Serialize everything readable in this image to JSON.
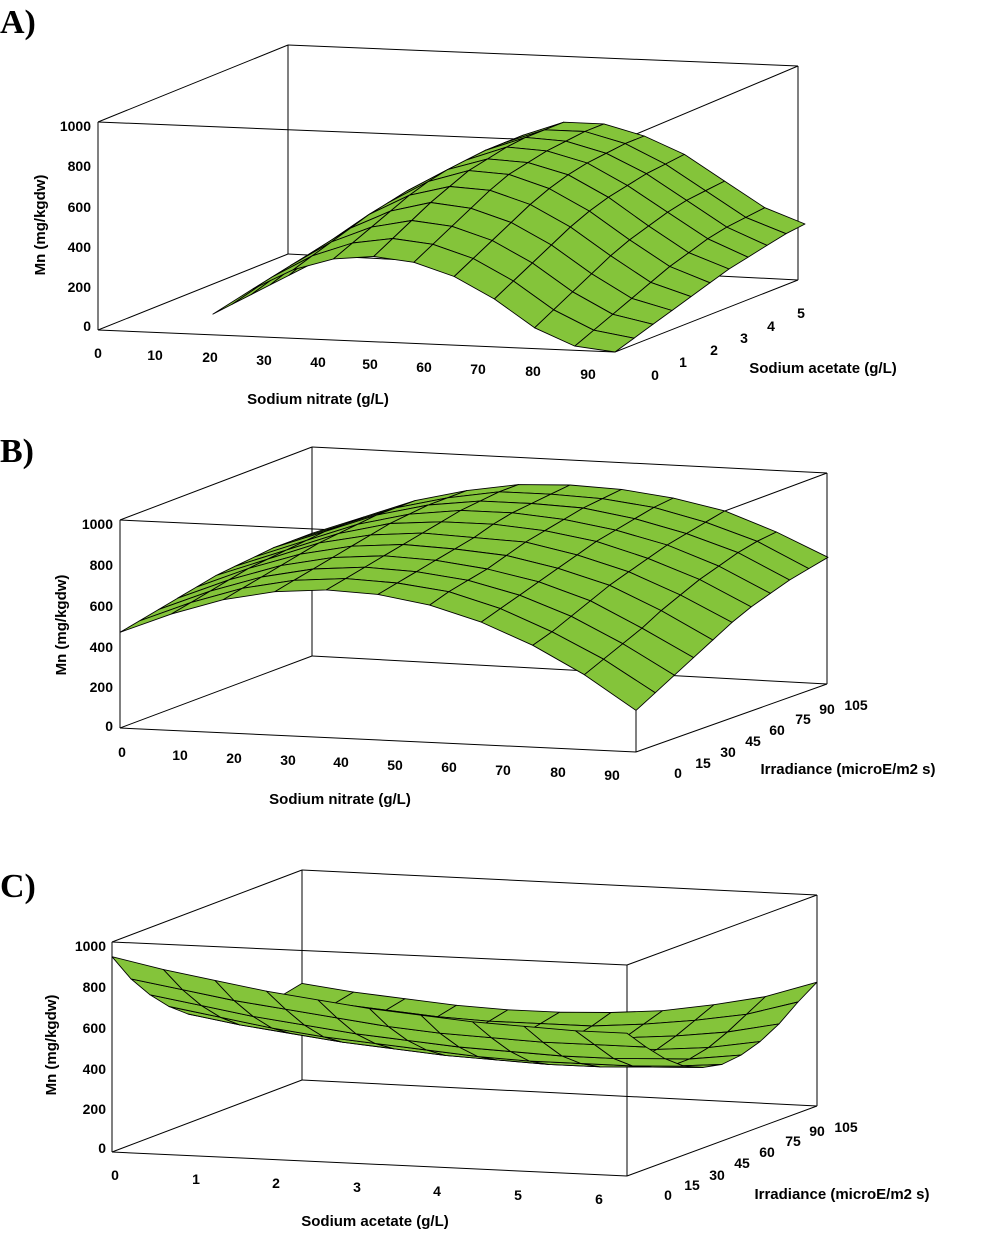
{
  "chart_data": [
    {
      "type": "surface3d",
      "panel": "A)",
      "xlabel": "Sodium nitrate (g/L)",
      "ylabel": "Sodium acetate (g/L)",
      "zlabel": "Mn (mg/kgdw)",
      "x_ticks": [
        "0",
        "10",
        "20",
        "30",
        "40",
        "50",
        "60",
        "70",
        "80",
        "90"
      ],
      "y_ticks": [
        "0",
        "1",
        "2",
        "3",
        "4",
        "5"
      ],
      "z_ticks": [
        "0",
        "200",
        "400",
        "600",
        "800",
        "1000"
      ],
      "xlim": [
        0,
        90
      ],
      "ylim": [
        0,
        5
      ],
      "zlim": [
        0,
        1000
      ],
      "surface": {
        "x": [
          20,
          27,
          34,
          41,
          48,
          55,
          62,
          69,
          76,
          83,
          90
        ],
        "y": [
          0,
          0.5,
          1,
          1.5,
          2,
          2.5,
          3,
          3.5,
          4,
          4.5,
          5
        ],
        "z": [
          [
            100,
            230,
            330,
            390,
            410,
            390,
            330,
            230,
            100,
            20,
            0
          ],
          [
            110,
            250,
            360,
            430,
            460,
            440,
            380,
            280,
            150,
            60,
            30
          ],
          [
            120,
            270,
            390,
            470,
            510,
            490,
            430,
            330,
            200,
            100,
            60
          ],
          [
            130,
            290,
            420,
            510,
            560,
            540,
            480,
            380,
            250,
            140,
            90
          ],
          [
            140,
            310,
            450,
            550,
            600,
            590,
            530,
            430,
            300,
            180,
            120
          ],
          [
            150,
            320,
            470,
            580,
            640,
            630,
            570,
            470,
            340,
            220,
            150
          ],
          [
            160,
            330,
            490,
            600,
            660,
            650,
            600,
            500,
            370,
            250,
            180
          ],
          [
            160,
            340,
            500,
            610,
            680,
            670,
            620,
            520,
            400,
            280,
            200
          ],
          [
            160,
            340,
            500,
            620,
            690,
            680,
            630,
            540,
            420,
            300,
            220
          ],
          [
            160,
            340,
            500,
            620,
            690,
            690,
            640,
            550,
            430,
            310,
            240
          ],
          [
            160,
            340,
            500,
            620,
            690,
            690,
            640,
            560,
            440,
            320,
            250
          ]
        ]
      }
    },
    {
      "type": "surface3d",
      "panel": "B)",
      "xlabel": "Sodium nitrate (g/L)",
      "ylabel": "Irradiance (microE/m2 s)",
      "zlabel": "Mn (mg/kgdw)",
      "x_ticks": [
        "0",
        "10",
        "20",
        "30",
        "40",
        "50",
        "60",
        "70",
        "80",
        "90"
      ],
      "y_ticks": [
        "0",
        "15",
        "30",
        "45",
        "60",
        "75",
        "90",
        "105"
      ],
      "z_ticks": [
        "0",
        "200",
        "400",
        "600",
        "800",
        "1000"
      ],
      "xlim": [
        0,
        90
      ],
      "ylim": [
        0,
        105
      ],
      "zlim": [
        0,
        1000
      ],
      "surface": {
        "x": [
          0,
          9,
          18,
          27,
          36,
          45,
          54,
          63,
          72,
          81,
          90
        ],
        "y": [
          0,
          10.5,
          21,
          31.5,
          42,
          52.5,
          63,
          73.5,
          84,
          94.5,
          105
        ],
        "z": [
          [
            460,
            560,
            640,
            690,
            710,
            700,
            660,
            590,
            490,
            360,
            200
          ],
          [
            480,
            580,
            660,
            710,
            730,
            720,
            690,
            620,
            520,
            400,
            250
          ],
          [
            500,
            600,
            680,
            730,
            750,
            740,
            710,
            650,
            560,
            440,
            300
          ],
          [
            520,
            620,
            700,
            750,
            770,
            760,
            730,
            680,
            600,
            480,
            350
          ],
          [
            540,
            640,
            720,
            770,
            790,
            780,
            760,
            710,
            640,
            530,
            400
          ],
          [
            560,
            650,
            740,
            790,
            810,
            800,
            790,
            740,
            670,
            570,
            450
          ],
          [
            570,
            660,
            750,
            810,
            830,
            830,
            810,
            770,
            700,
            610,
            490
          ],
          [
            580,
            670,
            760,
            820,
            850,
            850,
            830,
            790,
            730,
            640,
            520
          ],
          [
            590,
            680,
            770,
            830,
            860,
            860,
            850,
            810,
            750,
            670,
            550
          ],
          [
            590,
            680,
            770,
            830,
            870,
            870,
            860,
            830,
            770,
            690,
            570
          ],
          [
            590,
            680,
            770,
            830,
            870,
            880,
            870,
            840,
            790,
            700,
            590
          ]
        ]
      }
    },
    {
      "type": "surface3d",
      "panel": "C)",
      "xlabel": "Sodium acetate (g/L)",
      "ylabel": "Irradiance (microE/m2 s)",
      "zlabel": "Mn (mg/kgdw)",
      "x_ticks": [
        "0",
        "1",
        "2",
        "3",
        "4",
        "5",
        "6"
      ],
      "y_ticks": [
        "0",
        "15",
        "30",
        "45",
        "60",
        "75",
        "90",
        "105"
      ],
      "z_ticks": [
        "0",
        "200",
        "400",
        "600",
        "800",
        "1000"
      ],
      "xlim": [
        0,
        6
      ],
      "ylim": [
        0,
        105
      ],
      "zlim": [
        0,
        1000
      ],
      "surface": {
        "x": [
          0,
          0.6,
          1.2,
          1.8,
          2.4,
          3,
          3.6,
          4.2,
          4.8,
          5.4,
          6
        ],
        "y": [
          0,
          10.5,
          21,
          31.5,
          42,
          52.5,
          63,
          73.5,
          84,
          94.5,
          105
        ],
        "z": [
          [
            930,
            880,
            840,
            800,
            770,
            740,
            720,
            700,
            690,
            680,
            680
          ],
          [
            790,
            750,
            710,
            680,
            650,
            620,
            600,
            590,
            580,
            580,
            580
          ],
          [
            680,
            640,
            600,
            570,
            540,
            520,
            500,
            490,
            480,
            480,
            490
          ],
          [
            590,
            550,
            510,
            480,
            460,
            440,
            420,
            410,
            410,
            410,
            420
          ],
          [
            520,
            480,
            450,
            420,
            400,
            380,
            370,
            360,
            360,
            370,
            380
          ],
          [
            470,
            440,
            410,
            380,
            360,
            340,
            330,
            330,
            330,
            340,
            360
          ],
          [
            440,
            410,
            380,
            360,
            340,
            330,
            320,
            320,
            330,
            340,
            370
          ],
          [
            430,
            400,
            370,
            350,
            340,
            330,
            320,
            330,
            340,
            360,
            400
          ],
          [
            430,
            400,
            380,
            360,
            340,
            340,
            340,
            350,
            370,
            400,
            450
          ],
          [
            440,
            410,
            390,
            370,
            360,
            360,
            360,
            380,
            410,
            450,
            520
          ],
          [
            460,
            430,
            410,
            390,
            380,
            380,
            390,
            410,
            450,
            500,
            580
          ]
        ]
      }
    }
  ]
}
